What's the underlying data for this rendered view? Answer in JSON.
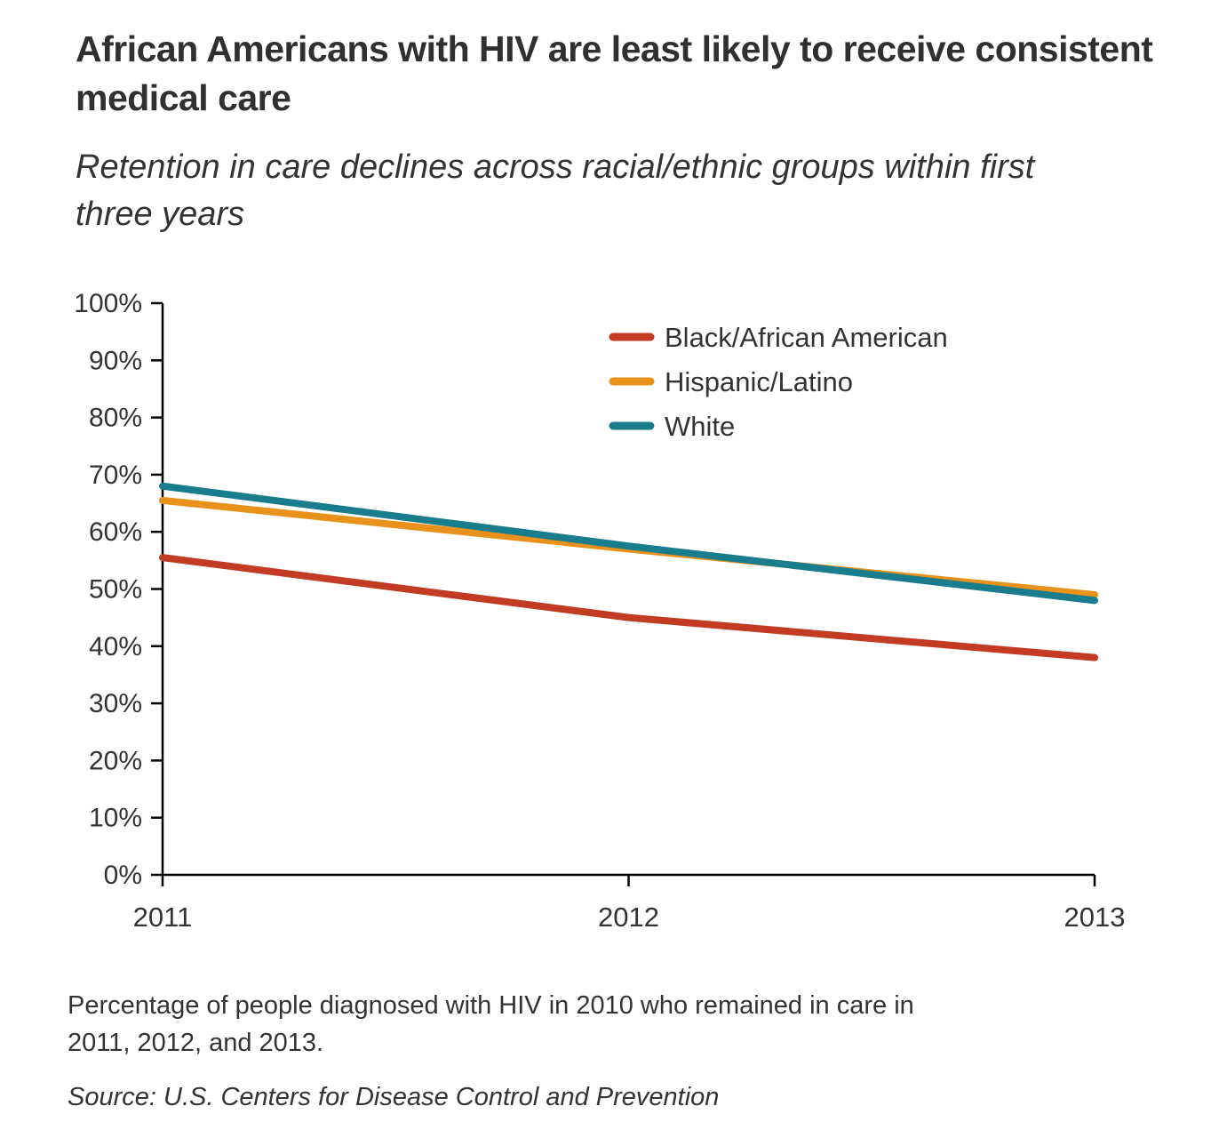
{
  "title": "African Americans with HIV are least likely to receive consistent medical care",
  "subtitle": "Retention in care declines across racial/ethnic groups within first three years",
  "footnote": "Percentage of people diagnosed with HIV in 2010 who remained in care in 2011, 2012, and 2013.",
  "source": "Source: U.S. Centers for Disease Control and Prevention",
  "colors": {
    "axis": "#000000",
    "tick_label": "#333333",
    "black_african_american": "#c23b22",
    "hispanic_latino": "#e8921c",
    "white": "#1a7d8e"
  },
  "chart_data": {
    "type": "line",
    "title": "",
    "xlabel": "",
    "ylabel": "",
    "x": [
      "2011",
      "2012",
      "2013"
    ],
    "series": [
      {
        "name": "Black/African American",
        "color": "#c23b22",
        "values": [
          55.5,
          45,
          38
        ]
      },
      {
        "name": "Hispanic/Latino",
        "color": "#e8921c",
        "values": [
          65.5,
          57,
          49
        ]
      },
      {
        "name": "White",
        "color": "#1a7d8e",
        "values": [
          68,
          57.5,
          48
        ]
      }
    ],
    "ylim": [
      0,
      100
    ],
    "ytick_step": 10,
    "ytick_suffix": "%",
    "grid": false,
    "legend_position": "inside-top-right"
  }
}
